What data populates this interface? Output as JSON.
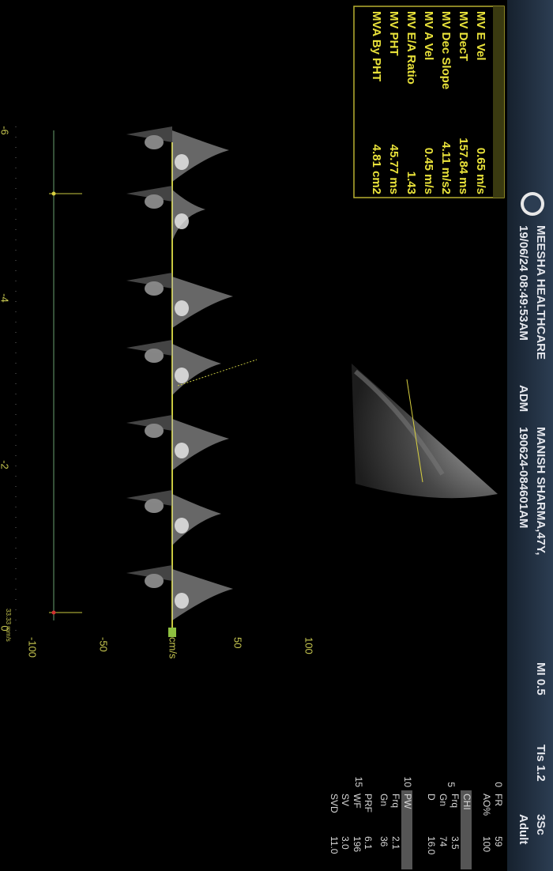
{
  "header": {
    "institution": "MEESHA HEALTHCARE",
    "datetime": "19/06/24 08:49:53AM",
    "patient": "MANISH SHARMA,47Y,",
    "operator": "ADM",
    "exam_id": "190624-084601AM",
    "mi": "MI 0.5",
    "tis": "TIs 1.2",
    "probe": "3Sc",
    "preset": "Adult"
  },
  "measurements": [
    {
      "label": "MV E Vel",
      "value": "0.65 m/s"
    },
    {
      "label": "MV DecT",
      "value": "157.84 ms"
    },
    {
      "label": "MV Dec Slope",
      "value": "4.11 m/s2"
    },
    {
      "label": "MV A Vel",
      "value": "0.45 m/s"
    },
    {
      "label": "MV E/A Ratio",
      "value": "1.43"
    },
    {
      "label": "MV PHT",
      "value": "45.77 ms"
    },
    {
      "label": "MVA By PHT",
      "value": "4.81 cm2"
    }
  ],
  "parameters": [
    {
      "label": "FR",
      "value": "59"
    },
    {
      "label": "AO%",
      "value": "100"
    },
    {
      "label": "CHI"
    },
    {
      "label": "Frq",
      "value": "3.5"
    },
    {
      "label": "Gn",
      "value": "74"
    },
    {
      "label": "D",
      "value": "16.0"
    },
    {
      "label": "PW"
    },
    {
      "label": "Frq",
      "value": "2.1"
    },
    {
      "label": "Gn",
      "value": "36"
    },
    {
      "label": "PRF",
      "value": "6.1"
    },
    {
      "label": "WF",
      "value": "196"
    },
    {
      "label": "SV",
      "value": "3.0"
    },
    {
      "label": "SVD",
      "value": "11.0"
    }
  ],
  "depth_scale": [
    "0",
    "5",
    "10",
    "15"
  ],
  "velocity_scale": [
    "100",
    "50",
    "cm/s",
    "-50",
    "-100"
  ],
  "time_scale": [
    "-6",
    "-4",
    "-2",
    "0"
  ],
  "sweep": "33.33 mm/s"
}
